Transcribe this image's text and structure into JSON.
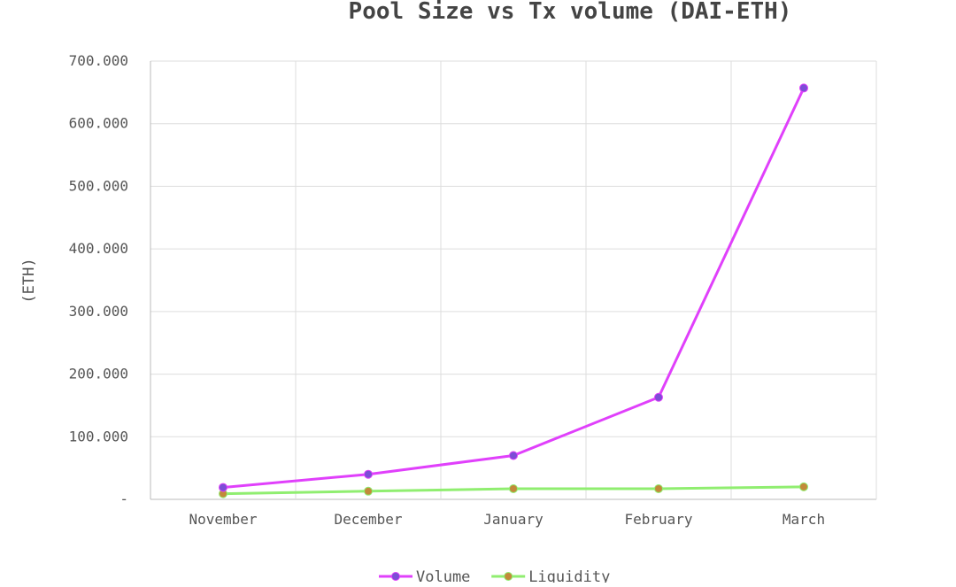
{
  "chart_data": {
    "type": "line",
    "title": "Pool Size vs Tx volume (DAI-ETH)",
    "xlabel": "",
    "ylabel": "(ETH)",
    "categories": [
      "November",
      "December",
      "January",
      "February",
      "March"
    ],
    "y_ticks": [
      "700.000",
      "600.000",
      "500.000",
      "400.000",
      "300.000",
      "200.000",
      "100.000",
      "-"
    ],
    "ylim": [
      0,
      700
    ],
    "grid": true,
    "legend_position": "bottom",
    "series": [
      {
        "name": "Volume",
        "values": [
          19,
          40,
          70,
          163,
          657
        ],
        "line_color": "#e040fb",
        "marker_color": "#7c4dd6"
      },
      {
        "name": "Liquidity",
        "values": [
          9,
          13,
          17,
          17,
          20
        ],
        "line_color": "#90ee70",
        "marker_color": "#c28a3a"
      }
    ]
  }
}
